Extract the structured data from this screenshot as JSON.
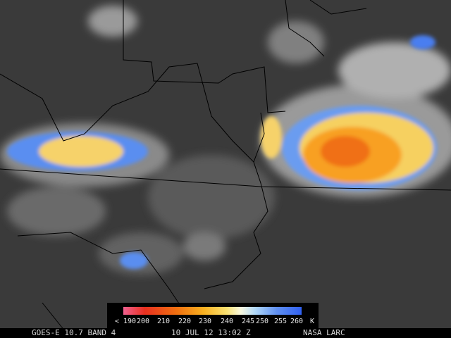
{
  "legend": {
    "ticks": [
      {
        "value": 190,
        "label": "< 190"
      },
      200,
      210,
      220,
      230,
      240,
      245,
      250,
      255,
      260
    ],
    "unit": "K"
  },
  "footer": {
    "satellite": "GOES-E 10.7 BAND 4",
    "time": "10 JUL 12 13:02 Z",
    "source": "NASA LARC"
  }
}
